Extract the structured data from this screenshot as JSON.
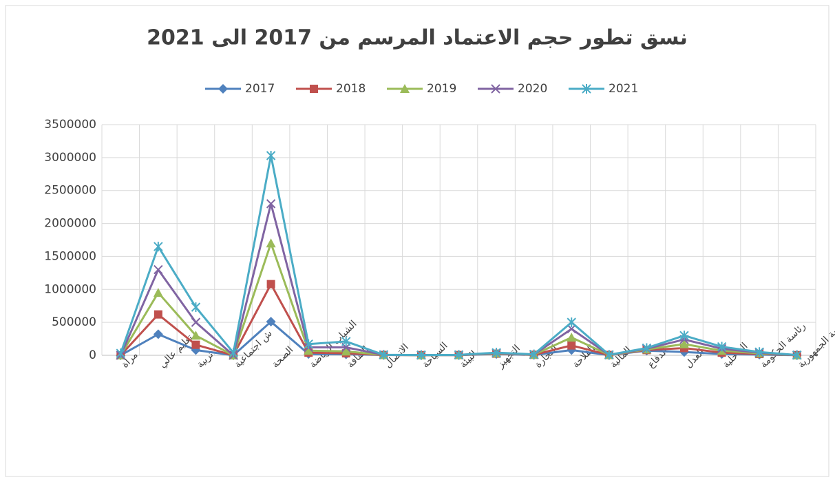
{
  "chart_data": {
    "type": "line",
    "title": "نسق تطور حجم الاعتماد المرسم من 2017 الى 2021",
    "categories": [
      "مراة",
      "تعليم عالي",
      "تربية",
      "ش اجتماعية",
      "الصحة",
      "الشباب الرياضة",
      "الثقافة",
      "الاتصال",
      "السياحة",
      "البيئة",
      "التجهيز",
      "التجارة",
      "الفلاحة",
      "المالية",
      "الدفاع",
      "العدل",
      "الداخلية",
      "رئاسة الحكومة",
      "رئاسة الجمهورية"
    ],
    "series": [
      {
        "name": "2017",
        "color": "#4f81bd",
        "marker": "diamond",
        "values": [
          0,
          320000,
          80000,
          0,
          510000,
          20000,
          15000,
          5000,
          2000,
          3000,
          20000,
          5000,
          80000,
          3000,
          70000,
          50000,
          20000,
          10000,
          2000
        ]
      },
      {
        "name": "2018",
        "color": "#c0504d",
        "marker": "square",
        "values": [
          0,
          620000,
          160000,
          0,
          1080000,
          40000,
          30000,
          5000,
          3000,
          4000,
          25000,
          8000,
          150000,
          5000,
          80000,
          110000,
          40000,
          20000,
          3000
        ]
      },
      {
        "name": "2019",
        "color": "#9bbb59",
        "marker": "triangle",
        "values": [
          0,
          950000,
          300000,
          0,
          1700000,
          70000,
          60000,
          6000,
          3000,
          5000,
          30000,
          10000,
          270000,
          6000,
          90000,
          170000,
          70000,
          30000,
          3000
        ]
      },
      {
        "name": "2020",
        "color": "#8064a2",
        "marker": "x",
        "values": [
          0,
          1300000,
          500000,
          0,
          2300000,
          120000,
          120000,
          7000,
          4000,
          6000,
          35000,
          12000,
          400000,
          7000,
          100000,
          240000,
          100000,
          40000,
          3000
        ]
      },
      {
        "name": "2021",
        "color": "#4bacc6",
        "marker": "star",
        "values": [
          30000,
          1650000,
          730000,
          40000,
          3030000,
          170000,
          210000,
          8000,
          4000,
          7000,
          40000,
          15000,
          500000,
          8000,
          110000,
          300000,
          130000,
          50000,
          4000
        ]
      }
    ],
    "ylim": [
      0,
      3500000
    ],
    "yticks": [
      0,
      500000,
      1000000,
      1500000,
      2000000,
      2500000,
      3000000,
      3500000
    ],
    "grid": true,
    "legend": "top"
  }
}
